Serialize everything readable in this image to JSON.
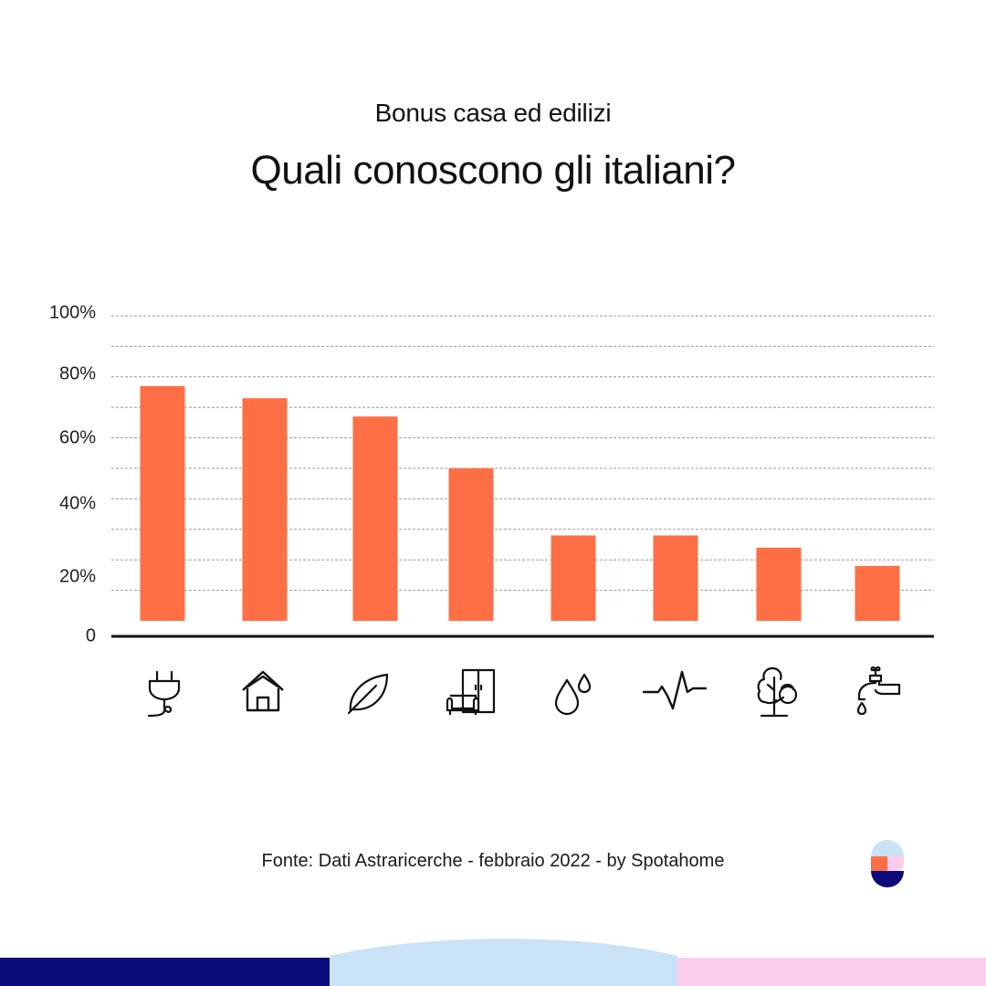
{
  "header": {
    "subtitle": "Bonus casa ed edilizi",
    "title": "Quali conoscono gli italiani?"
  },
  "chart_data": {
    "type": "bar",
    "categories": [
      "",
      "",
      "",
      "",
      "",
      "",
      "",
      ""
    ],
    "category_icons": [
      "plug-icon",
      "house-icon",
      "leaf-icon",
      "furniture-icon",
      "water-drops-icon",
      "heartbeat-icon",
      "tree-icon",
      "faucet-icon"
    ],
    "values": [
      77,
      73,
      67,
      50,
      28,
      28,
      24,
      18
    ],
    "y_tick_labels": [
      "0",
      "20%",
      "40%",
      "60%",
      "80%",
      "100%"
    ],
    "y_ticks": [
      0,
      20,
      40,
      60,
      80,
      100
    ],
    "ylim": [
      0,
      100
    ],
    "grid": true,
    "bar_color": "#ff6f45",
    "title": "Quali conoscono gli italiani?",
    "xlabel": "",
    "ylabel": ""
  },
  "footer": {
    "source": "Fonte: Dati Astraricerche - febbraio 2022 - by Spotahome"
  },
  "colors": {
    "navy": "#0a0a7a",
    "light_blue": "#c9e2f6",
    "pink": "#fdcdee",
    "orange": "#ff6f45"
  },
  "logo": {
    "name": "spotahome-logo-icon"
  }
}
